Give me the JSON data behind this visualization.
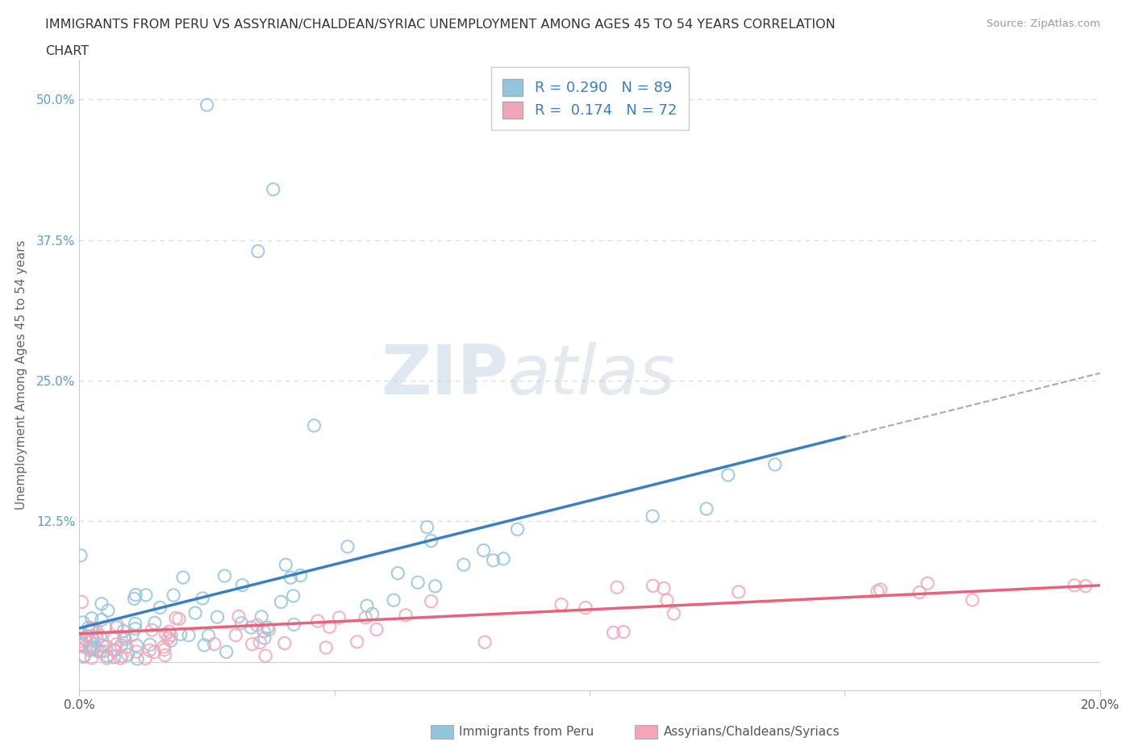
{
  "title_line1": "IMMIGRANTS FROM PERU VS ASSYRIAN/CHALDEAN/SYRIAC UNEMPLOYMENT AMONG AGES 45 TO 54 YEARS CORRELATION",
  "title_line2": "CHART",
  "source": "Source: ZipAtlas.com",
  "ylabel": "Unemployment Among Ages 45 to 54 years",
  "xlim": [
    0.0,
    0.2
  ],
  "ylim": [
    -0.025,
    0.535
  ],
  "blue_color": "#92C5DE",
  "pink_color": "#F4A6B8",
  "blue_line_color": "#3A7FC1",
  "pink_line_color": "#E8637A",
  "watermark_zip": "ZIP",
  "watermark_atlas": "atlas",
  "R_blue": 0.29,
  "N_blue": 89,
  "R_pink": 0.174,
  "N_pink": 72,
  "legend_label_blue": "Immigrants from Peru",
  "legend_label_pink": "Assyrians/Chaldeans/Syriacs",
  "grid_color": "#DDDDDD",
  "background_color": "#FFFFFF",
  "tick_color": "#5B9EC9",
  "xlabel_color": "#555555"
}
